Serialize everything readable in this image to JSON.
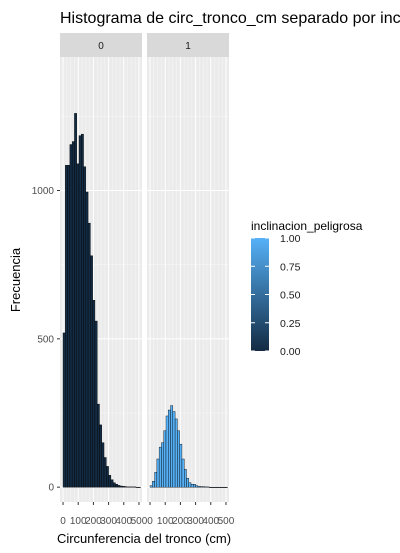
{
  "chart_data": {
    "type": "bar",
    "title": "Histograma de circ_tronco_cm separado por inclinacion_peligrosa",
    "xlabel": "Circunferencia del tronco (cm)",
    "ylabel": "Frecuencia",
    "xlim": [
      -20,
      520
    ],
    "ylim": [
      -50,
      1450
    ],
    "x_tick_labels": [
      "0",
      "100",
      "200",
      "300",
      "400",
      "500"
    ],
    "y_tick_labels": [
      "0",
      "500",
      "1000"
    ],
    "y_ticks": [
      0,
      500,
      1000
    ],
    "grid": true,
    "bin_width": 15,
    "facet_var": "inclinacion_peligrosa",
    "facets": [
      {
        "label": "0",
        "fill_value": 0,
        "bins_x": [
          0,
          15,
          30,
          45,
          60,
          75,
          90,
          105,
          120,
          135,
          150,
          165,
          180,
          195,
          210,
          225,
          240,
          255,
          270,
          285,
          300,
          315,
          330,
          345,
          360,
          375,
          390,
          405,
          420,
          435,
          450,
          465,
          480,
          495
        ],
        "counts": [
          520,
          1085,
          1085,
          1155,
          1165,
          1260,
          1090,
          1185,
          1190,
          1080,
          995,
          890,
          780,
          630,
          560,
          280,
          210,
          150,
          100,
          70,
          40,
          25,
          15,
          10,
          6,
          4,
          3,
          2,
          1,
          1,
          1,
          1,
          0,
          0
        ]
      },
      {
        "label": "1",
        "fill_value": 1,
        "bins_x": [
          0,
          15,
          30,
          45,
          60,
          75,
          90,
          105,
          120,
          135,
          150,
          165,
          180,
          195,
          210,
          225,
          240,
          255,
          270,
          285,
          300,
          315,
          330,
          345,
          360,
          375,
          390,
          405,
          420,
          435,
          450,
          465,
          480,
          495
        ],
        "counts": [
          5,
          20,
          50,
          95,
          135,
          150,
          190,
          240,
          260,
          275,
          255,
          230,
          190,
          145,
          95,
          60,
          30,
          15,
          10,
          10,
          5,
          3,
          2,
          2,
          1,
          1,
          0,
          0,
          0,
          0,
          0,
          0,
          0,
          0
        ]
      }
    ],
    "legend": {
      "title": "inclinacion_peligrosa",
      "labels": [
        "1.00",
        "0.75",
        "0.50",
        "0.25",
        "0.00"
      ],
      "placement": "right",
      "color_low": "#132B43",
      "color_high": "#56B1F7"
    },
    "colors": {
      "panel_bg": "#ebebeb",
      "grid_major": "#ffffff",
      "strip_bg": "#d9d9d9",
      "bar_outline": "#000000"
    }
  }
}
